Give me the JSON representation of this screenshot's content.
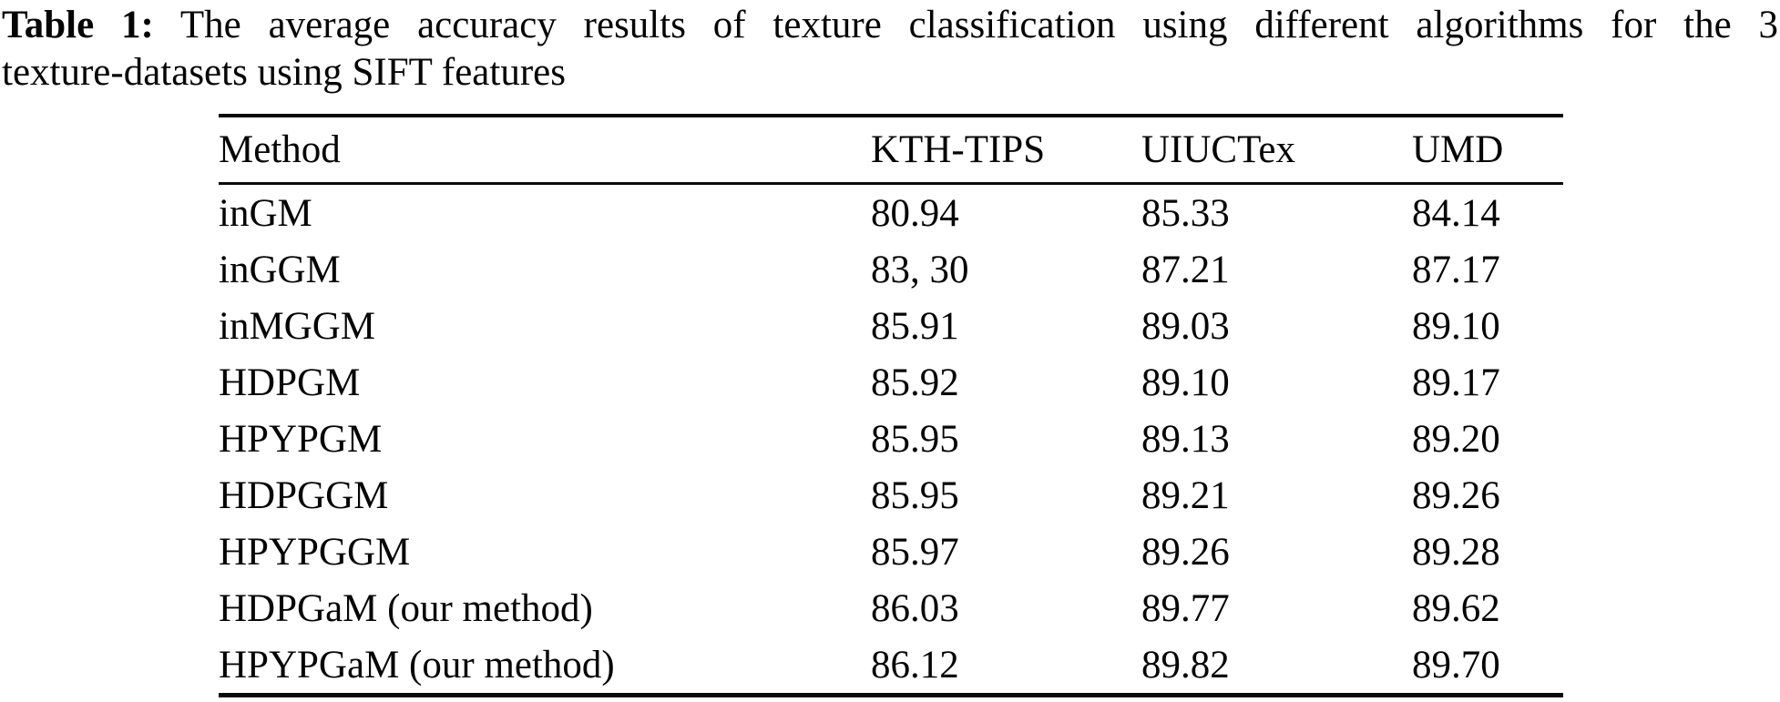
{
  "caption": {
    "label": "Table 1:",
    "line1_rest": "The average accuracy results of texture classification using different algorithms for the 3",
    "line2": "texture-datasets using SIFT features"
  },
  "table": {
    "headers": {
      "method": "Method",
      "kth_tips": "KTH-TIPS",
      "uiuctex": "UIUCTex",
      "umd": "UMD"
    },
    "rows": [
      {
        "method": "inGM",
        "kth_tips": "80.94",
        "uiuctex": "85.33",
        "umd": "84.14"
      },
      {
        "method": "inGGM",
        "kth_tips": "83, 30",
        "uiuctex": "87.21",
        "umd": "87.17"
      },
      {
        "method": "inMGGM",
        "kth_tips": "85.91",
        "uiuctex": "89.03",
        "umd": "89.10"
      },
      {
        "method": "HDPGM",
        "kth_tips": "85.92",
        "uiuctex": "89.10",
        "umd": "89.17"
      },
      {
        "method": "HPYPGM",
        "kth_tips": "85.95",
        "uiuctex": "89.13",
        "umd": "89.20"
      },
      {
        "method": "HDPGGM",
        "kth_tips": "85.95",
        "uiuctex": "89.21",
        "umd": "89.26"
      },
      {
        "method": "HPYPGGM",
        "kth_tips": "85.97",
        "uiuctex": "89.26",
        "umd": "89.28"
      },
      {
        "method": "HDPGaM (our method)",
        "kth_tips": "86.03",
        "uiuctex": "89.77",
        "umd": "89.62"
      },
      {
        "method": "HPYPGaM (our method)",
        "kth_tips": "86.12",
        "uiuctex": "89.82",
        "umd": "89.70"
      }
    ]
  },
  "colors": {
    "background": "#ffffff",
    "text": "#050505",
    "rule": "#0a0a0a"
  }
}
